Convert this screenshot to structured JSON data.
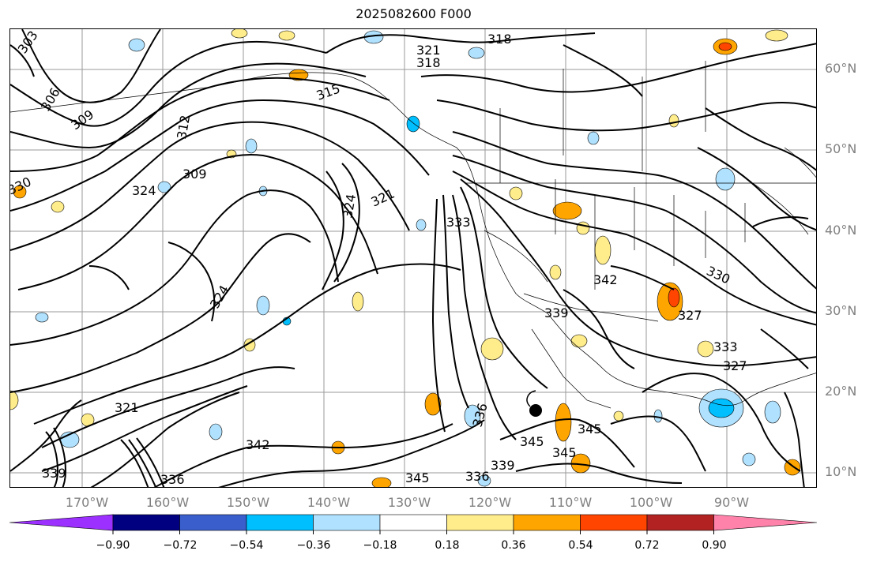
{
  "title": "2025082600 F000",
  "lat_labels": [
    "60°N",
    "50°N",
    "40°N",
    "30°N",
    "20°N",
    "10°N"
  ],
  "lon_labels": [
    "170°W",
    "160°W",
    "150°W",
    "140°W",
    "130°W",
    "120°W",
    "110°W",
    "100°W",
    "90°W"
  ],
  "colorbar": {
    "ticks": [
      "−0.90",
      "−0.72",
      "−0.54",
      "−0.36",
      "−0.18",
      "0.18",
      "0.36",
      "0.54",
      "0.72",
      "0.90"
    ],
    "colors": [
      "#9b30ff",
      "#000080",
      "#3a5fcd",
      "#00bfff",
      "#b0e2ff",
      "#ffffff",
      "#ffec8b",
      "#ffa500",
      "#ff4500",
      "#b22222",
      "#ff82ab"
    ]
  },
  "contour_labels": [
    "303",
    "306",
    "309",
    "309",
    "312",
    "315",
    "318",
    "318",
    "321",
    "321",
    "321",
    "324",
    "324",
    "324",
    "327",
    "327",
    "330",
    "330",
    "333",
    "333",
    "336",
    "336",
    "336",
    "339",
    "339",
    "339",
    "342",
    "342",
    "345",
    "345",
    "345",
    "345"
  ]
}
